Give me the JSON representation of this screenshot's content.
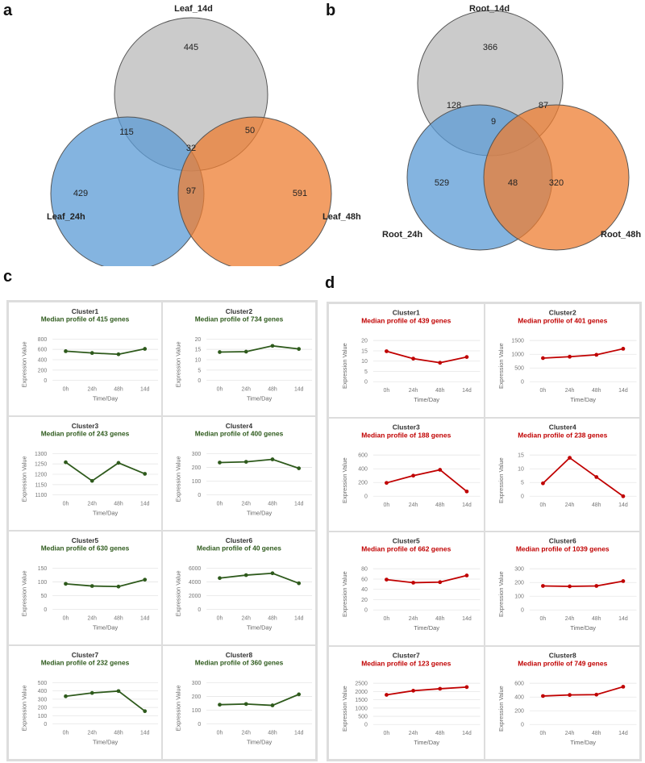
{
  "panels": {
    "a": "a",
    "b": "b",
    "c": "c",
    "d": "d"
  },
  "colors": {
    "gray": "#b9b9b9",
    "blue": "#5b9bd5",
    "orange": "#ed7d31",
    "green": "#2e5a1c",
    "red": "#c00000"
  },
  "chart_data": [
    {
      "type": "venn",
      "panel": "a",
      "sets": [
        "Leaf_14d",
        "Leaf_24h",
        "Leaf_48h"
      ],
      "regions": {
        "Leaf_14d_only": 445,
        "Leaf_24h_only": 429,
        "Leaf_48h_only": 591,
        "Leaf_14d&Leaf_24h": 115,
        "Leaf_14d&Leaf_48h": 50,
        "Leaf_24h&Leaf_48h": 97,
        "all": 32
      }
    },
    {
      "type": "venn",
      "panel": "b",
      "sets": [
        "Root_14d",
        "Root_24h",
        "Root_48h"
      ],
      "regions": {
        "Root_14d_only": 366,
        "Root_24h_only": 529,
        "Root_48h_only": 320,
        "Root_14d&Root_24h": 128,
        "Root_14d&Root_48h": 87,
        "Root_24h&Root_48h": 48,
        "all": 9
      }
    },
    {
      "type": "line",
      "panel": "c",
      "color": "#2e5a1c",
      "x": [
        "0h",
        "24h",
        "48h",
        "14d"
      ],
      "xlabel": "Time/Day",
      "ylabel": "Expression Value",
      "charts": [
        {
          "title": "Cluster1",
          "subtitle": "Median profile of 415 genes",
          "ylim": [
            0,
            800
          ],
          "ystep": 200,
          "values": [
            565,
            530,
            505,
            610
          ],
          "xlabel": "Time/Day"
        },
        {
          "title": "Cluster2",
          "subtitle": "Median profile of 734 genes",
          "ylim": [
            0,
            20
          ],
          "ystep": 5,
          "values": [
            13.7,
            13.9,
            16.7,
            15.2
          ],
          "xlabel": "Time/Day"
        },
        {
          "title": "Cluster3",
          "subtitle": "Median profile of 243 genes",
          "ylim": [
            1100,
            1300
          ],
          "ystep": 50,
          "values": [
            1258,
            1168,
            1255,
            1202
          ],
          "xlabel": "Time/Day"
        },
        {
          "title": "Cluster4",
          "subtitle": "Median profile of 400 genes",
          "ylim": [
            0,
            300
          ],
          "ystep": 100,
          "values": [
            235,
            240,
            258,
            193
          ],
          "xlabel": "Time/Day"
        },
        {
          "title": "Cluster5",
          "subtitle": "Median profile of 630 genes",
          "ylim": [
            0,
            150
          ],
          "ystep": 50,
          "values": [
            93,
            85,
            83,
            108
          ],
          "xlabel": "Time/Day"
        },
        {
          "title": "Cluster6",
          "subtitle": "Median profile of 40 genes",
          "ylim": [
            0,
            6000
          ],
          "ystep": 2000,
          "values": [
            4550,
            4980,
            5250,
            3800
          ],
          "xlabel": "Time/Day"
        },
        {
          "title": "Cluster7",
          "subtitle": "Median profile of 232 genes",
          "ylim": [
            0,
            500
          ],
          "ystep": 100,
          "values": [
            335,
            375,
            398,
            155
          ],
          "xlabel": "Time/Day"
        },
        {
          "title": "Cluster8",
          "subtitle": "Median profile of 360 genes",
          "ylim": [
            0,
            300
          ],
          "ystep": 100,
          "values": [
            140,
            145,
            135,
            215
          ],
          "xlabel": "Time/Day"
        }
      ]
    },
    {
      "type": "line",
      "panel": "d",
      "color": "#c00000",
      "x": [
        "0h",
        "24h",
        "48h",
        "14d"
      ],
      "xlabel": "Time/Day",
      "ylabel": "Expression Value",
      "charts": [
        {
          "title": "Cluster1",
          "subtitle": "Median profile of 439 genes",
          "ylim": [
            0,
            20
          ],
          "ystep": 5,
          "values": [
            14.8,
            11.2,
            9.2,
            12
          ],
          "xlabel": "Time/Day"
        },
        {
          "title": "Cluster2",
          "subtitle": "Median profile of 401 genes",
          "ylim": [
            0,
            1500
          ],
          "ystep": 500,
          "values": [
            860,
            910,
            980,
            1200
          ],
          "xlabel": "Time/Day"
        },
        {
          "title": "Cluster3",
          "subtitle": "Median profile of 188 genes",
          "ylim": [
            0,
            600
          ],
          "ystep": 200,
          "values": [
            195,
            300,
            385,
            70
          ],
          "xlabel": ""
        },
        {
          "title": "Cluster4",
          "subtitle": "Median profile of 238 genes",
          "ylim": [
            0,
            15
          ],
          "ystep": 5,
          "values": [
            4.7,
            14,
            7,
            0
          ],
          "xlabel": ""
        },
        {
          "title": "Cluster5",
          "subtitle": "Median profile of 662 genes",
          "ylim": [
            0,
            80
          ],
          "ystep": 20,
          "values": [
            59,
            53,
            54,
            67
          ],
          "xlabel": "Time/Day"
        },
        {
          "title": "Cluster6",
          "subtitle": "Median profile of 1039 genes",
          "ylim": [
            0,
            300
          ],
          "ystep": 100,
          "values": [
            175,
            172,
            175,
            210
          ],
          "xlabel": "Time/Day"
        },
        {
          "title": "Cluster7",
          "subtitle": "Median profile of 123 genes",
          "ylim": [
            0,
            2500
          ],
          "ystep": 500,
          "values": [
            1800,
            2050,
            2170,
            2270
          ],
          "xlabel": "Time/Day"
        },
        {
          "title": "Cluster8",
          "subtitle": "Median profile of 749 genes",
          "ylim": [
            0,
            600
          ],
          "ystep": 200,
          "values": [
            415,
            430,
            435,
            550
          ],
          "xlabel": "Time/Day"
        }
      ]
    }
  ]
}
